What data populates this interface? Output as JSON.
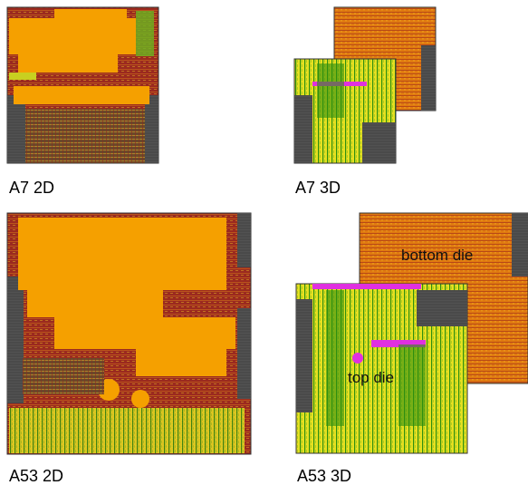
{
  "panels": [
    {
      "label": "A7 2D"
    },
    {
      "label": "A7 3D"
    },
    {
      "label": "A53 2D"
    },
    {
      "label": "A53 3D",
      "annotations": [
        "bottom die",
        "top die"
      ]
    }
  ]
}
